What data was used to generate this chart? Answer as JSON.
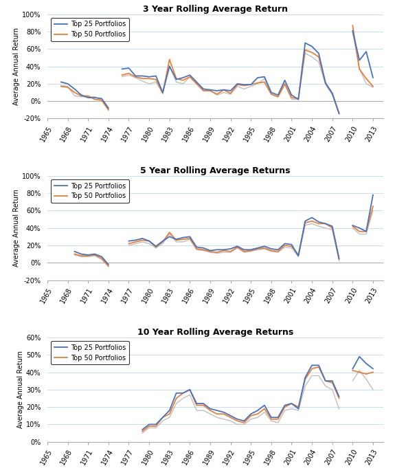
{
  "chart1": {
    "title": "3 Year Rolling Average Return",
    "ylim": [
      -0.2,
      1.0
    ],
    "yticks": [
      -0.2,
      0.0,
      0.2,
      0.4,
      0.6,
      0.8,
      1.0
    ],
    "years": [
      1965,
      1966,
      1967,
      1968,
      1969,
      1970,
      1971,
      1972,
      1973,
      1974,
      1975,
      1976,
      1977,
      1978,
      1979,
      1980,
      1981,
      1982,
      1983,
      1984,
      1985,
      1986,
      1987,
      1988,
      1989,
      1990,
      1991,
      1992,
      1993,
      1994,
      1995,
      1996,
      1997,
      1998,
      1999,
      2000,
      2001,
      2002,
      2003,
      2004,
      2005,
      2006,
      2007,
      2008,
      2009,
      2010,
      2011,
      2012,
      2013,
      2014
    ],
    "top25": [
      null,
      null,
      0.22,
      0.2,
      0.14,
      0.07,
      0.04,
      0.04,
      0.03,
      -0.08,
      null,
      0.37,
      0.38,
      0.29,
      0.29,
      0.28,
      0.29,
      0.1,
      0.4,
      0.25,
      0.27,
      0.3,
      0.22,
      0.14,
      0.13,
      0.12,
      0.13,
      0.12,
      0.2,
      0.19,
      0.19,
      0.27,
      0.28,
      0.1,
      0.07,
      0.24,
      0.07,
      0.02,
      0.67,
      0.63,
      0.55,
      0.21,
      0.09,
      -0.14,
      null,
      0.81,
      0.47,
      0.57,
      0.27,
      null
    ],
    "top50": [
      null,
      null,
      0.17,
      0.16,
      0.1,
      0.06,
      0.06,
      0.02,
      0.01,
      -0.1,
      null,
      0.3,
      0.32,
      0.28,
      0.26,
      0.26,
      0.25,
      0.09,
      0.48,
      0.26,
      0.24,
      0.28,
      0.2,
      0.12,
      0.12,
      0.08,
      0.13,
      0.09,
      0.19,
      0.18,
      0.19,
      0.21,
      0.22,
      0.08,
      0.05,
      0.2,
      0.04,
      0.03,
      0.59,
      0.56,
      0.51,
      0.21,
      0.09,
      -0.14,
      null,
      0.87,
      0.37,
      0.26,
      0.17,
      null
    ],
    "sp500": [
      null,
      null,
      0.18,
      0.17,
      0.06,
      0.05,
      0.05,
      0.05,
      0.01,
      -0.1,
      null,
      0.28,
      0.3,
      0.27,
      0.23,
      0.2,
      0.22,
      0.09,
      0.41,
      0.22,
      0.2,
      0.28,
      0.2,
      0.12,
      0.12,
      0.07,
      0.1,
      0.08,
      0.17,
      0.14,
      0.17,
      0.2,
      0.26,
      0.08,
      0.05,
      0.19,
      0.02,
      0.02,
      0.55,
      0.51,
      0.45,
      0.19,
      0.07,
      -0.15,
      null,
      0.79,
      0.37,
      0.2,
      0.16,
      null
    ]
  },
  "chart2": {
    "title": "5 Year Rolling Average Returns",
    "ylim": [
      -0.2,
      1.0
    ],
    "yticks": [
      -0.2,
      0.0,
      0.2,
      0.4,
      0.6,
      0.8,
      1.0
    ],
    "years": [
      1965,
      1966,
      1967,
      1968,
      1969,
      1970,
      1971,
      1972,
      1973,
      1974,
      1975,
      1976,
      1977,
      1978,
      1979,
      1980,
      1981,
      1982,
      1983,
      1984,
      1985,
      1986,
      1987,
      1988,
      1989,
      1990,
      1991,
      1992,
      1993,
      1994,
      1995,
      1996,
      1997,
      1998,
      1999,
      2000,
      2001,
      2002,
      2003,
      2004,
      2005,
      2006,
      2007,
      2008,
      2009,
      2010,
      2011,
      2012,
      2013,
      2014
    ],
    "top25": [
      null,
      null,
      null,
      null,
      0.13,
      0.1,
      0.09,
      0.1,
      0.07,
      -0.02,
      null,
      null,
      0.25,
      0.26,
      0.28,
      0.25,
      0.19,
      0.25,
      0.3,
      0.27,
      0.29,
      0.3,
      0.18,
      0.17,
      0.14,
      0.15,
      0.15,
      0.16,
      0.19,
      0.15,
      0.15,
      0.17,
      0.19,
      0.16,
      0.15,
      0.22,
      0.21,
      0.08,
      0.48,
      0.52,
      0.47,
      0.45,
      0.42,
      0.05,
      null,
      0.43,
      0.4,
      0.36,
      0.78,
      null
    ],
    "top50": [
      null,
      null,
      null,
      null,
      0.1,
      0.08,
      0.08,
      0.09,
      0.05,
      -0.04,
      null,
      null,
      0.22,
      0.24,
      0.26,
      0.25,
      0.18,
      0.24,
      0.35,
      0.26,
      0.27,
      0.28,
      0.16,
      0.15,
      0.13,
      0.12,
      0.14,
      0.13,
      0.18,
      0.13,
      0.14,
      0.16,
      0.17,
      0.14,
      0.13,
      0.2,
      0.19,
      0.09,
      0.46,
      0.48,
      0.45,
      0.45,
      0.4,
      0.04,
      null,
      0.42,
      0.36,
      0.36,
      0.65,
      null
    ],
    "sp500": [
      null,
      null,
      null,
      null,
      0.09,
      0.07,
      0.07,
      0.08,
      0.04,
      -0.04,
      null,
      null,
      0.2,
      0.22,
      0.24,
      0.22,
      0.17,
      0.22,
      0.33,
      0.24,
      0.24,
      0.27,
      0.15,
      0.14,
      0.12,
      0.11,
      0.12,
      0.12,
      0.17,
      0.12,
      0.13,
      0.15,
      0.16,
      0.13,
      0.12,
      0.18,
      0.17,
      0.07,
      0.43,
      0.45,
      0.42,
      0.4,
      0.38,
      0.02,
      null,
      0.4,
      0.33,
      0.33,
      0.6,
      null
    ]
  },
  "chart3": {
    "title": "10 Year Rolling Average Returns",
    "ylim": [
      0.0,
      0.6
    ],
    "yticks": [
      0.0,
      0.1,
      0.2,
      0.3,
      0.4,
      0.5,
      0.6
    ],
    "years": [
      1965,
      1966,
      1967,
      1968,
      1969,
      1970,
      1971,
      1972,
      1973,
      1974,
      1975,
      1976,
      1977,
      1978,
      1979,
      1980,
      1981,
      1982,
      1983,
      1984,
      1985,
      1986,
      1987,
      1988,
      1989,
      1990,
      1991,
      1992,
      1993,
      1994,
      1995,
      1996,
      1997,
      1998,
      1999,
      2000,
      2001,
      2002,
      2003,
      2004,
      2005,
      2006,
      2007,
      2008,
      2009,
      2010,
      2011,
      2012,
      2013,
      2014
    ],
    "top25": [
      null,
      null,
      null,
      null,
      null,
      null,
      null,
      null,
      null,
      null,
      null,
      null,
      null,
      null,
      0.07,
      0.1,
      0.1,
      0.14,
      0.18,
      0.28,
      0.28,
      0.3,
      0.22,
      0.22,
      0.19,
      0.18,
      0.17,
      0.15,
      0.13,
      0.12,
      0.16,
      0.18,
      0.21,
      0.14,
      0.14,
      0.21,
      0.22,
      0.19,
      0.37,
      0.44,
      0.44,
      0.35,
      0.35,
      0.26,
      null,
      0.42,
      0.49,
      0.45,
      0.42,
      null
    ],
    "top50": [
      null,
      null,
      null,
      null,
      null,
      null,
      null,
      null,
      null,
      null,
      null,
      null,
      null,
      null,
      0.06,
      0.09,
      0.09,
      0.14,
      0.16,
      0.25,
      0.28,
      0.3,
      0.21,
      0.21,
      0.18,
      0.16,
      0.16,
      0.14,
      0.12,
      0.11,
      0.15,
      0.16,
      0.19,
      0.13,
      0.13,
      0.2,
      0.22,
      0.2,
      0.36,
      0.42,
      0.43,
      0.35,
      0.34,
      0.25,
      null,
      0.41,
      0.4,
      0.39,
      0.4,
      null
    ],
    "sp500": [
      null,
      null,
      null,
      null,
      null,
      null,
      null,
      null,
      null,
      null,
      null,
      null,
      null,
      null,
      0.05,
      0.08,
      0.08,
      0.12,
      0.14,
      0.22,
      0.25,
      0.27,
      0.18,
      0.18,
      0.16,
      0.14,
      0.13,
      0.12,
      0.1,
      0.1,
      0.13,
      0.14,
      0.17,
      0.12,
      0.11,
      0.18,
      0.19,
      0.18,
      0.32,
      0.38,
      0.38,
      0.32,
      0.3,
      0.19,
      null,
      0.35,
      0.41,
      0.36,
      0.3,
      null
    ]
  },
  "colors": {
    "top25": "#4472C4",
    "top50": "#ED7D31",
    "sp500": "#BFBFBF"
  },
  "ylabel": "Average Annual Return",
  "xtick_years": [
    1965,
    1968,
    1971,
    1974,
    1977,
    1980,
    1983,
    1986,
    1989,
    1992,
    1995,
    1998,
    2001,
    2004,
    2007,
    2010,
    2013
  ],
  "linewidth": 1.0,
  "grid_color": "#BDD7EE",
  "spine_color": "#AAAAAA",
  "tick_fontsize": 7,
  "ylabel_fontsize": 7,
  "title_fontsize": 9,
  "legend_fontsize": 7
}
